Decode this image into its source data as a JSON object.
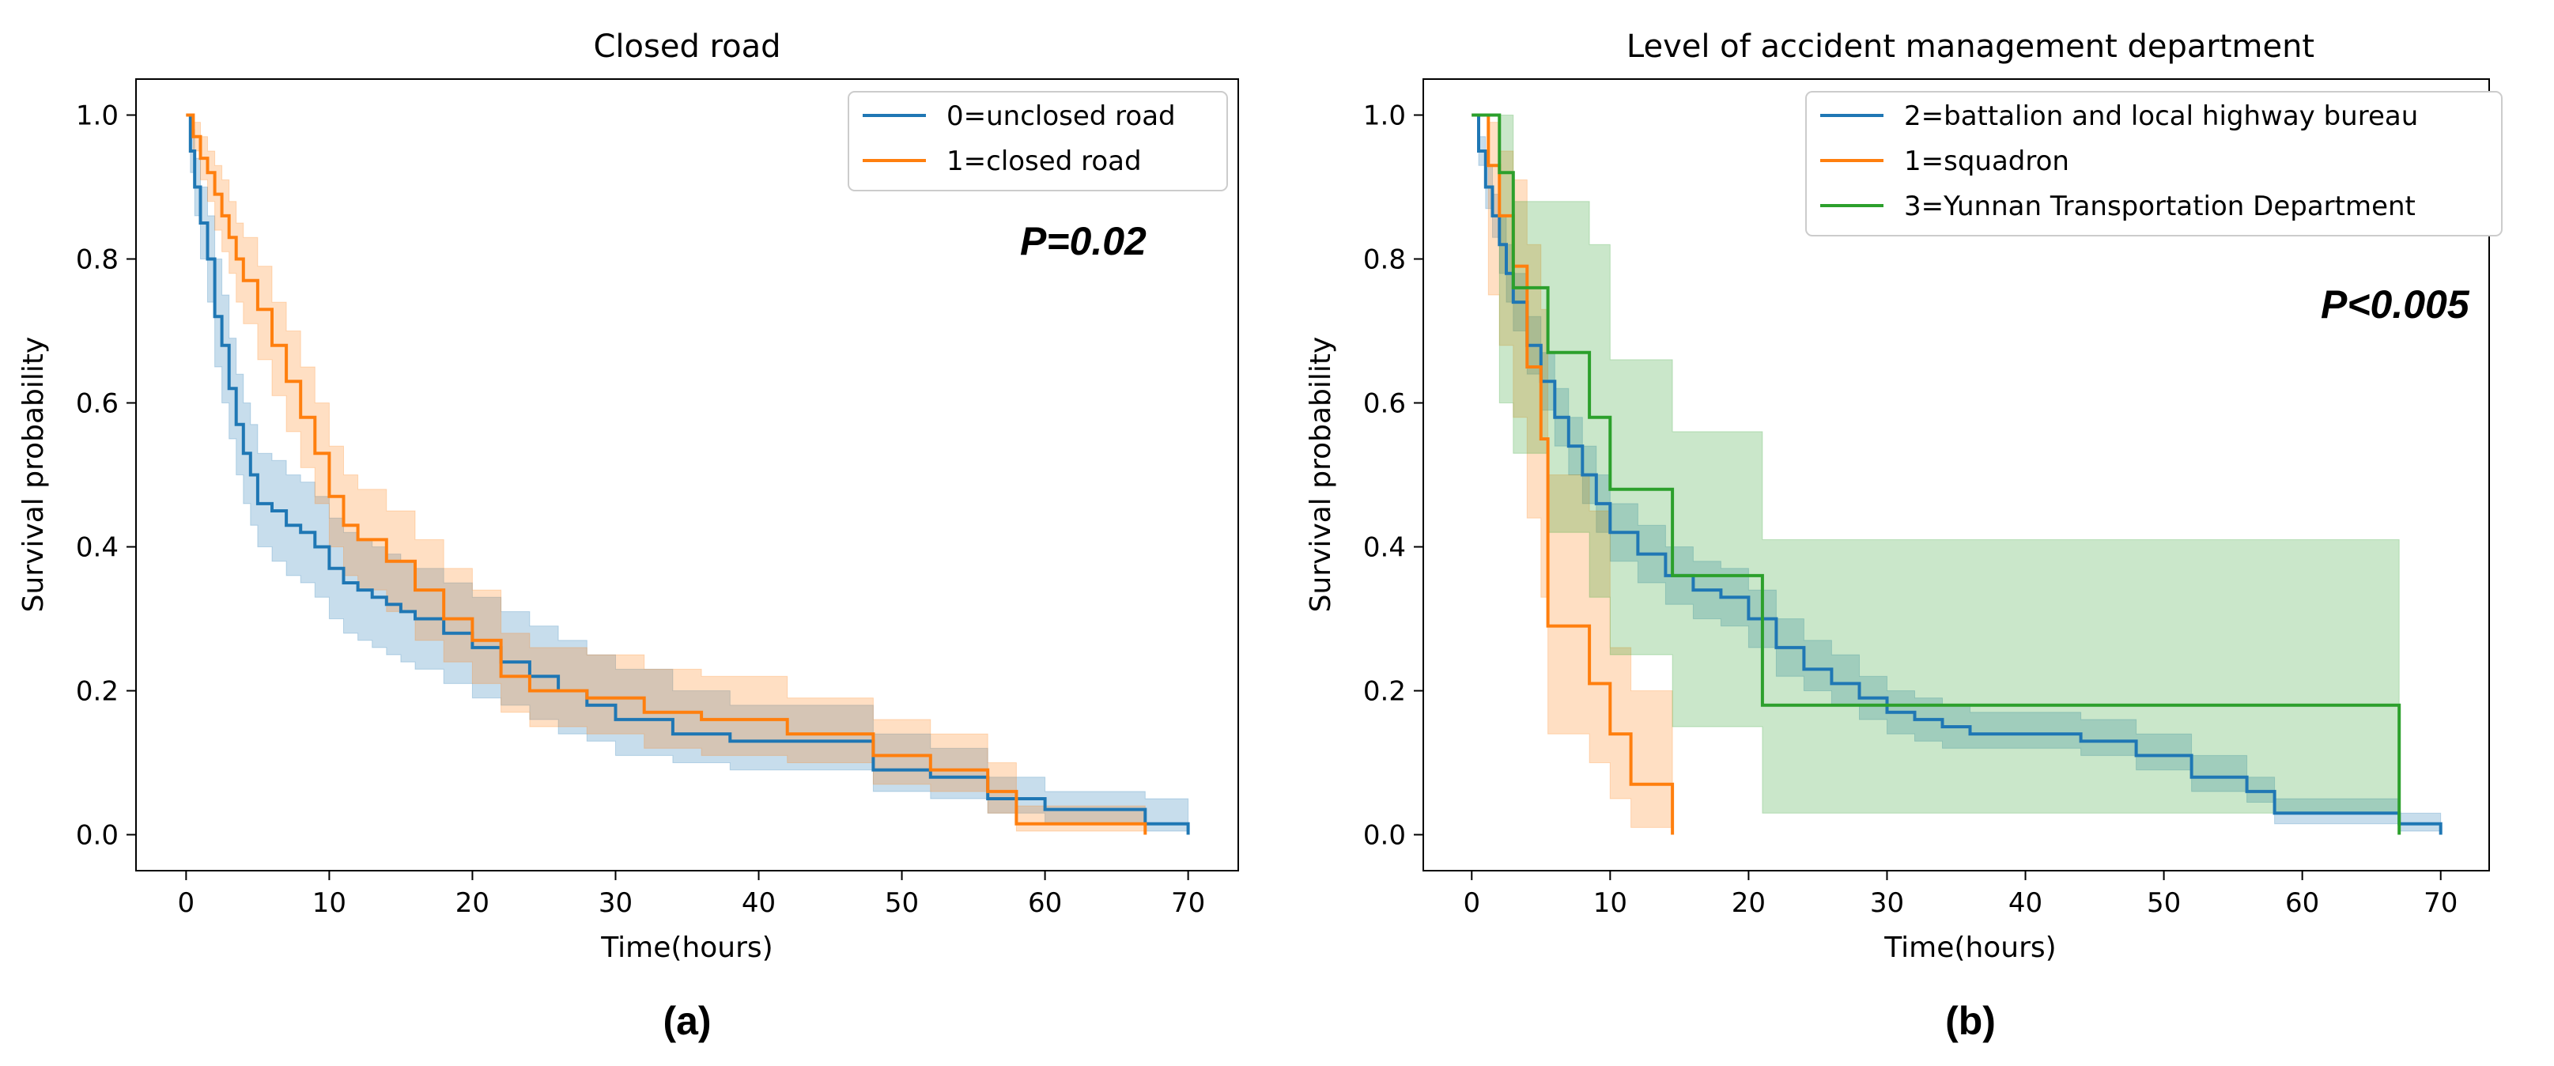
{
  "colors": {
    "blue": "#1f77b4",
    "orange": "#ff7f0e",
    "green": "#2ca02c"
  },
  "chart_data": [
    {
      "type": "line",
      "subtype": "kaplan-meier",
      "title": "Closed road",
      "xlabel": "Time(hours)",
      "ylabel": "Survival probability",
      "xlim": [
        -3.5,
        73.5
      ],
      "ylim": [
        -0.05,
        1.05
      ],
      "xticks": [
        0,
        10,
        20,
        30,
        40,
        50,
        60,
        70
      ],
      "yticks": [
        0.0,
        0.2,
        0.4,
        0.6,
        0.8,
        1.0
      ],
      "xtick_labels": [
        "0",
        "10",
        "20",
        "30",
        "40",
        "50",
        "60",
        "70"
      ],
      "ytick_labels": [
        "0.0",
        "0.2",
        "0.4",
        "0.6",
        "0.8",
        "1.0"
      ],
      "legend_position": "top-right",
      "annotation": "P=0.02",
      "caption": "(a)",
      "series": [
        {
          "name": "0=unclosed road",
          "color": "#1f77b4",
          "x": [
            0,
            0.3,
            0.6,
            1,
            1.5,
            2,
            2.5,
            3,
            3.5,
            4,
            4.5,
            5,
            6,
            7,
            8,
            9,
            10,
            11,
            12,
            13,
            14,
            15,
            16,
            18,
            20,
            22,
            24,
            26,
            28,
            30,
            34,
            38,
            44,
            48,
            52,
            56,
            60,
            67,
            70
          ],
          "values": [
            1.0,
            0.95,
            0.9,
            0.85,
            0.8,
            0.72,
            0.68,
            0.62,
            0.57,
            0.53,
            0.5,
            0.46,
            0.45,
            0.43,
            0.42,
            0.4,
            0.37,
            0.35,
            0.34,
            0.33,
            0.32,
            0.31,
            0.3,
            0.28,
            0.26,
            0.24,
            0.22,
            0.2,
            0.18,
            0.16,
            0.14,
            0.13,
            0.13,
            0.09,
            0.08,
            0.05,
            0.035,
            0.015,
            0.0
          ],
          "ci_lower": [
            1.0,
            0.92,
            0.86,
            0.8,
            0.74,
            0.65,
            0.6,
            0.55,
            0.5,
            0.46,
            0.43,
            0.4,
            0.38,
            0.36,
            0.35,
            0.33,
            0.3,
            0.28,
            0.27,
            0.26,
            0.25,
            0.24,
            0.23,
            0.21,
            0.19,
            0.18,
            0.16,
            0.14,
            0.13,
            0.11,
            0.1,
            0.09,
            0.09,
            0.06,
            0.05,
            0.03,
            0.015,
            0.005,
            0.0
          ],
          "ci_upper": [
            1.0,
            0.98,
            0.94,
            0.9,
            0.86,
            0.8,
            0.75,
            0.69,
            0.64,
            0.6,
            0.57,
            0.53,
            0.52,
            0.5,
            0.49,
            0.47,
            0.44,
            0.42,
            0.41,
            0.4,
            0.39,
            0.38,
            0.37,
            0.35,
            0.33,
            0.31,
            0.29,
            0.27,
            0.25,
            0.23,
            0.2,
            0.18,
            0.18,
            0.14,
            0.12,
            0.08,
            0.06,
            0.05,
            0.04
          ]
        },
        {
          "name": "1=closed road",
          "color": "#ff7f0e",
          "x": [
            0,
            0.5,
            1,
            1.5,
            2,
            2.5,
            3,
            3.5,
            4,
            5,
            6,
            7,
            8,
            9,
            10,
            11,
            12,
            14,
            16,
            18,
            20,
            22,
            24,
            28,
            32,
            36,
            42,
            48,
            52,
            56,
            58,
            67
          ],
          "values": [
            1.0,
            0.97,
            0.94,
            0.92,
            0.89,
            0.86,
            0.83,
            0.8,
            0.77,
            0.73,
            0.68,
            0.63,
            0.58,
            0.53,
            0.47,
            0.43,
            0.41,
            0.38,
            0.34,
            0.3,
            0.27,
            0.22,
            0.2,
            0.19,
            0.17,
            0.16,
            0.14,
            0.11,
            0.09,
            0.06,
            0.015,
            0.0
          ],
          "ci_lower": [
            1.0,
            0.95,
            0.91,
            0.88,
            0.84,
            0.81,
            0.78,
            0.74,
            0.71,
            0.66,
            0.61,
            0.56,
            0.51,
            0.46,
            0.4,
            0.36,
            0.34,
            0.31,
            0.27,
            0.24,
            0.21,
            0.17,
            0.15,
            0.14,
            0.12,
            0.11,
            0.1,
            0.07,
            0.06,
            0.03,
            0.005,
            0.0
          ],
          "ci_upper": [
            1.0,
            0.99,
            0.97,
            0.95,
            0.93,
            0.91,
            0.88,
            0.85,
            0.83,
            0.79,
            0.74,
            0.7,
            0.65,
            0.6,
            0.54,
            0.5,
            0.48,
            0.45,
            0.41,
            0.37,
            0.34,
            0.28,
            0.26,
            0.25,
            0.23,
            0.22,
            0.19,
            0.16,
            0.14,
            0.1,
            0.04,
            0.02
          ]
        }
      ]
    },
    {
      "type": "line",
      "subtype": "kaplan-meier",
      "title": "Level of accident management department",
      "xlabel": "Time(hours)",
      "ylabel": "Survival probability",
      "xlim": [
        -3.5,
        73.5
      ],
      "ylim": [
        -0.05,
        1.05
      ],
      "xticks": [
        0,
        10,
        20,
        30,
        40,
        50,
        60,
        70
      ],
      "yticks": [
        0.0,
        0.2,
        0.4,
        0.6,
        0.8,
        1.0
      ],
      "xtick_labels": [
        "0",
        "10",
        "20",
        "30",
        "40",
        "50",
        "60",
        "70"
      ],
      "ytick_labels": [
        "0.0",
        "0.2",
        "0.4",
        "0.6",
        "0.8",
        "1.0"
      ],
      "legend_position": "top-right",
      "annotation": "P<0.005",
      "caption": "(b)",
      "series": [
        {
          "name": "2=battalion and local highway bureau",
          "color": "#1f77b4",
          "x": [
            0,
            0.5,
            1,
            1.5,
            2,
            2.5,
            3,
            4,
            5,
            6,
            7,
            8,
            9,
            10,
            12,
            14,
            16,
            18,
            20,
            22,
            24,
            26,
            28,
            30,
            32,
            34,
            36,
            40,
            44,
            48,
            52,
            56,
            58,
            67,
            70
          ],
          "values": [
            1.0,
            0.95,
            0.9,
            0.86,
            0.82,
            0.78,
            0.74,
            0.68,
            0.63,
            0.58,
            0.54,
            0.5,
            0.46,
            0.42,
            0.39,
            0.36,
            0.34,
            0.33,
            0.3,
            0.26,
            0.23,
            0.21,
            0.19,
            0.17,
            0.16,
            0.15,
            0.14,
            0.14,
            0.13,
            0.11,
            0.08,
            0.06,
            0.03,
            0.015,
            0.0
          ],
          "ci_lower": [
            1.0,
            0.93,
            0.87,
            0.83,
            0.78,
            0.74,
            0.7,
            0.64,
            0.59,
            0.54,
            0.5,
            0.46,
            0.42,
            0.38,
            0.35,
            0.32,
            0.3,
            0.29,
            0.26,
            0.22,
            0.2,
            0.18,
            0.16,
            0.14,
            0.13,
            0.12,
            0.12,
            0.12,
            0.11,
            0.09,
            0.06,
            0.045,
            0.015,
            0.005,
            0.0
          ],
          "ci_upper": [
            1.0,
            0.97,
            0.93,
            0.89,
            0.86,
            0.82,
            0.78,
            0.72,
            0.67,
            0.62,
            0.58,
            0.54,
            0.5,
            0.46,
            0.43,
            0.4,
            0.38,
            0.37,
            0.34,
            0.3,
            0.27,
            0.25,
            0.22,
            0.2,
            0.19,
            0.18,
            0.17,
            0.17,
            0.16,
            0.14,
            0.11,
            0.08,
            0.05,
            0.03,
            0.02
          ]
        },
        {
          "name": "1=squadron",
          "color": "#ff7f0e",
          "x": [
            0,
            1.2,
            2,
            3,
            4,
            5,
            5.5,
            8.5,
            10,
            11.5,
            12.5,
            14.5
          ],
          "values": [
            1.0,
            0.93,
            0.86,
            0.79,
            0.65,
            0.55,
            0.29,
            0.21,
            0.14,
            0.07,
            0.07,
            0.0
          ],
          "ci_lower": [
            1.0,
            0.75,
            0.68,
            0.58,
            0.44,
            0.33,
            0.14,
            0.1,
            0.05,
            0.01,
            0.01,
            0.0
          ],
          "ci_upper": [
            1.0,
            0.99,
            0.95,
            0.91,
            0.82,
            0.73,
            0.5,
            0.45,
            0.26,
            0.2,
            0.2,
            0.2
          ]
        },
        {
          "name": "3=Yunnan Transportation Department",
          "color": "#2ca02c",
          "x": [
            0,
            1.2,
            2,
            3,
            5.5,
            8.5,
            10,
            14.5,
            21,
            67
          ],
          "values": [
            1.0,
            1.0,
            0.92,
            0.76,
            0.67,
            0.58,
            0.48,
            0.36,
            0.18,
            0.0
          ],
          "ci_lower": [
            1.0,
            1.0,
            0.6,
            0.53,
            0.42,
            0.33,
            0.25,
            0.15,
            0.03,
            0.0
          ],
          "ci_upper": [
            1.0,
            1.0,
            1.0,
            0.88,
            0.88,
            0.82,
            0.66,
            0.56,
            0.41,
            0.41
          ]
        }
      ]
    }
  ]
}
